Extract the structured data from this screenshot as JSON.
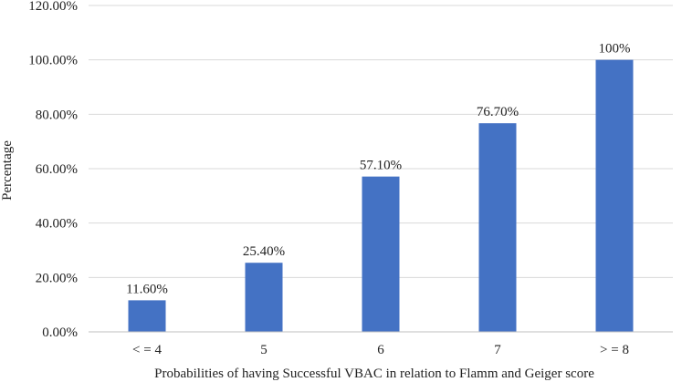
{
  "chart_data": {
    "type": "bar",
    "title": "",
    "xlabel": "Probabilities of having Successful VBAC in relation to Flamm and Geiger score",
    "ylabel": "Percentage",
    "categories": [
      "< = 4",
      "5",
      "6",
      "7",
      "> = 8"
    ],
    "values": [
      11.6,
      25.4,
      57.1,
      76.7,
      100
    ],
    "data_labels": [
      "11.60%",
      "25.40%",
      "57.10%",
      "76.70%",
      "100%"
    ],
    "ylim": [
      0,
      120
    ],
    "yticks": [
      0,
      20,
      40,
      60,
      80,
      100,
      120
    ],
    "ytick_labels": [
      "0.00%",
      "20.00%",
      "40.00%",
      "60.00%",
      "80.00%",
      "100.00%",
      "120.00%"
    ],
    "grid": true,
    "legend": "none",
    "colors": {
      "bar": "#4472c4"
    }
  }
}
